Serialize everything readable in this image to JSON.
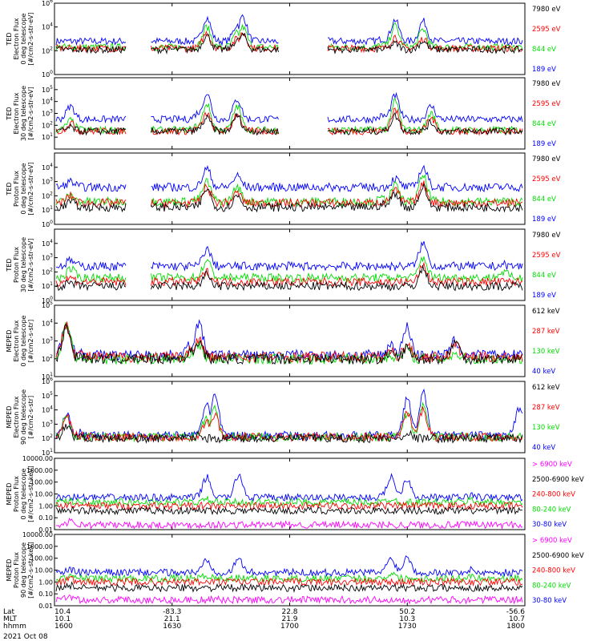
{
  "chart_data": {
    "type": "line",
    "date_label": "2021 Oct 08",
    "x_axis": {
      "rows": [
        {
          "label": "Lat",
          "values": [
            "10.4",
            "-83.3",
            "22.8",
            "50.2",
            "-56.6"
          ]
        },
        {
          "label": "MLT",
          "values": [
            "10.1",
            "21.1",
            "21.9",
            "10.3",
            "10.7"
          ]
        },
        {
          "label": "hhmm",
          "values": [
            "1600",
            "1630",
            "1700",
            "1730",
            "1800"
          ]
        }
      ]
    },
    "colors": {
      "black": "#000000",
      "red": "#ff0000",
      "green": "#00dd00",
      "blue": "#0000ff",
      "magenta": "#ff00ff"
    },
    "panels": [
      {
        "ylabel": [
          "TED",
          "Electron Flux",
          "0 deg telescope",
          "[#/cm2-s-str-eV]"
        ],
        "ylim_log": [
          0,
          6
        ],
        "tick_labels": [
          "10^0",
          "10^2",
          "10^4",
          "10^6"
        ],
        "tick_exps": [
          0,
          2,
          4,
          6
        ],
        "energies": [
          {
            "label": "7980 eV",
            "color": "black"
          },
          {
            "label": "2595 eV",
            "color": "red"
          },
          {
            "label": "844 eV",
            "color": "green"
          },
          {
            "label": "189 eV",
            "color": "blue"
          }
        ]
      },
      {
        "ylabel": [
          "TED",
          "Electron Flux",
          "30 deg telescope",
          "[#/cm2-s-str-eV]"
        ],
        "ylim_log": [
          0,
          6
        ],
        "tick_labels": [
          "10^1",
          "10^2",
          "10^3",
          "10^4",
          "10^5"
        ],
        "tick_exps": [
          1,
          2,
          3,
          4,
          5
        ],
        "energies": [
          {
            "label": "7980 eV",
            "color": "black"
          },
          {
            "label": "2595 eV",
            "color": "red"
          },
          {
            "label": "844 eV",
            "color": "green"
          },
          {
            "label": "189 eV",
            "color": "blue"
          }
        ]
      },
      {
        "ylabel": [
          "TED",
          "Proton Flux",
          "0 deg telescope",
          "[#/cm2-s-str-eV]"
        ],
        "ylim_log": [
          0,
          5
        ],
        "tick_labels": [
          "10^0",
          "10^1",
          "10^2",
          "10^3",
          "10^4"
        ],
        "tick_exps": [
          0,
          1,
          2,
          3,
          4
        ],
        "energies": [
          {
            "label": "7980 eV",
            "color": "black"
          },
          {
            "label": "2595 eV",
            "color": "red"
          },
          {
            "label": "844 eV",
            "color": "green"
          },
          {
            "label": "189 eV",
            "color": "blue"
          }
        ]
      },
      {
        "ylabel": [
          "TED",
          "Proton Flux",
          "30 deg telescope",
          "[#/cm2-s-str-eV]"
        ],
        "ylim_log": [
          0,
          5
        ],
        "tick_labels": [
          "10^0",
          "10^1",
          "10^2",
          "10^3",
          "10^4"
        ],
        "tick_exps": [
          0,
          1,
          2,
          3,
          4
        ],
        "energies": [
          {
            "label": "7980 eV",
            "color": "black"
          },
          {
            "label": "2595 eV",
            "color": "red"
          },
          {
            "label": "844 eV",
            "color": "green"
          },
          {
            "label": "189 eV",
            "color": "blue"
          }
        ]
      },
      {
        "ylabel": [
          "MEPED",
          "Electron Flux",
          "0 deg telescope",
          "[#/cm2-s-str]"
        ],
        "ylim_log": [
          1,
          5
        ],
        "tick_labels": [
          "10^1",
          "10^2",
          "10^3",
          "10^4",
          "10^5"
        ],
        "tick_exps": [
          1,
          2,
          3,
          4,
          5
        ],
        "energies": [
          {
            "label": "612 keV",
            "color": "black"
          },
          {
            "label": "287 keV",
            "color": "red"
          },
          {
            "label": "130 keV",
            "color": "green"
          },
          {
            "label": "40 keV",
            "color": "blue"
          }
        ]
      },
      {
        "ylabel": [
          "MEPED",
          "Electron Flux",
          "90 deg telescope",
          "[#/cm2-s-str]"
        ],
        "ylim_log": [
          1,
          6
        ],
        "tick_labels": [
          "10^1",
          "10^2",
          "10^3",
          "10^4",
          "10^5",
          "10^6"
        ],
        "tick_exps": [
          1,
          2,
          3,
          4,
          5,
          6
        ],
        "energies": [
          {
            "label": "612 keV",
            "color": "black"
          },
          {
            "label": "287 keV",
            "color": "red"
          },
          {
            "label": "130 keV",
            "color": "green"
          },
          {
            "label": "40 keV",
            "color": "blue"
          }
        ]
      },
      {
        "ylabel": [
          "MEPED",
          "Proton Flux",
          "0 deg telescope",
          "[#/cm2-s-str-keV]"
        ],
        "ylim_log": [
          -2,
          4
        ],
        "tick_labels": [
          "10000.00",
          "1000.00",
          "100.00",
          "10.00",
          "1.00",
          "0.10",
          "0.01"
        ],
        "tick_exps": [
          4,
          3,
          2,
          1,
          0,
          -1,
          -2
        ],
        "energies": [
          {
            "label": "> 6900 keV",
            "color": "magenta"
          },
          {
            "label": "2500-6900 keV",
            "color": "black"
          },
          {
            "label": "240-800 keV",
            "color": "red"
          },
          {
            "label": "80-240 keV",
            "color": "green"
          },
          {
            "label": "30-80 keV",
            "color": "blue"
          }
        ]
      },
      {
        "ylabel": [
          "MEPED",
          "Proton Flux",
          "90 deg telescope",
          "[#/cm2-s-str-keV]"
        ],
        "ylim_log": [
          -2,
          4
        ],
        "tick_labels": [
          "10000.00",
          "1000.00",
          "100.00",
          "10.00",
          "1.00",
          "0.10",
          "0.01"
        ],
        "tick_exps": [
          4,
          3,
          2,
          1,
          0,
          -1,
          -2
        ],
        "energies": [
          {
            "label": "> 6900 keV",
            "color": "magenta"
          },
          {
            "label": "2500-6900 keV",
            "color": "black"
          },
          {
            "label": "240-800 keV",
            "color": "red"
          },
          {
            "label": "80-240 keV",
            "color": "green"
          },
          {
            "label": "30-80 keV",
            "color": "blue"
          }
        ]
      }
    ]
  }
}
